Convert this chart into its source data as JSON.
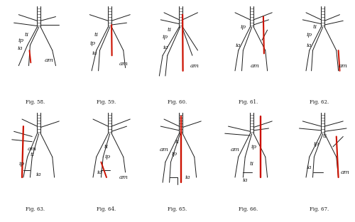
{
  "bg_color": "#ffffff",
  "line_color": "#1a1a1a",
  "red_color": "#cc1100",
  "fig_labels": [
    "Fig. 58.",
    "Fig. 59.",
    "Fig. 60.",
    "Fig. 61.",
    "Fig. 62.",
    "Fig. 63.",
    "Fig. 64.",
    "Fig. 65.",
    "Fig. 66.",
    "Fig. 67."
  ],
  "label_fontsize": 5.0,
  "annotation_fontsize": 6.0
}
